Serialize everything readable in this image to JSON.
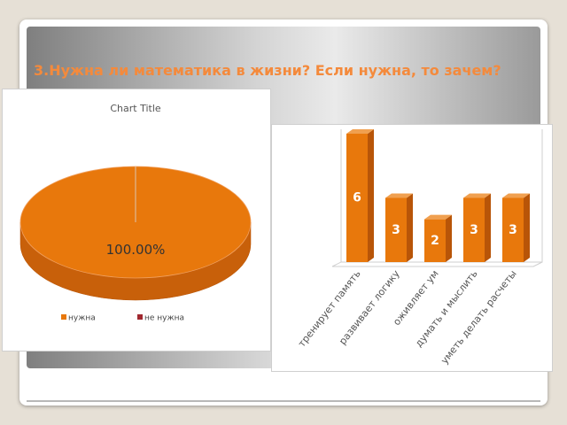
{
  "title": "3.Нужна ли математика в жизни? Если нужна, то зачем?",
  "chart_data": [
    {
      "type": "pie",
      "title": "Chart Title",
      "categories": [
        "нужна",
        "не нужна"
      ],
      "values": [
        100,
        0
      ],
      "value_labels": [
        "100.00%",
        null
      ],
      "colors": [
        "#e8780c",
        "#a0282f"
      ],
      "legend": "bottom"
    },
    {
      "type": "bar",
      "categories": [
        "тренирует память",
        "развивает логику",
        "оживляет ум",
        "думать и мыслить",
        "уметь делать расчеты"
      ],
      "values": [
        6,
        3,
        2,
        3,
        3
      ],
      "color": "#e8780c",
      "ylim": [
        0,
        6
      ]
    }
  ]
}
